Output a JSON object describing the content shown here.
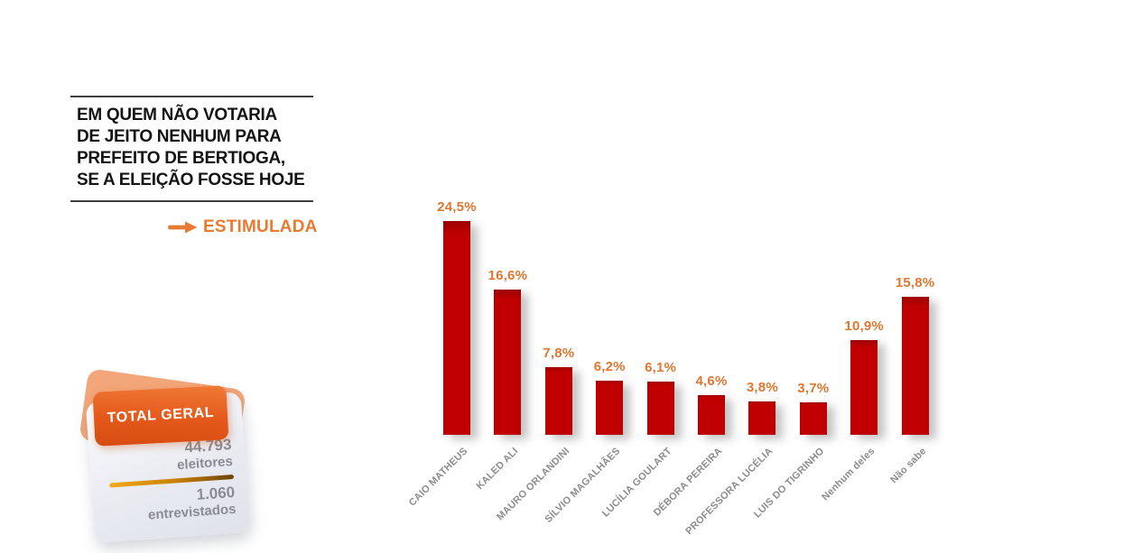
{
  "header": {
    "title_lines": [
      "EM QUEM NÃO VOTARIA",
      "DE JEITO NENHUM PARA",
      "PREFEITO DE BERTIOGA,",
      "SE A ELEIÇÃO FOSSE HOJE"
    ],
    "method_label": "ESTIMULADA"
  },
  "summary_card": {
    "badge_label": "TOTAL GERAL",
    "stats": [
      {
        "value": "44.793",
        "label": "eleitores"
      },
      {
        "value": "1.060",
        "label": "entrevistados"
      }
    ]
  },
  "chart_data": {
    "type": "bar",
    "title": "EM QUEM NÃO VOTARIA DE JEITO NENHUM PARA PREFEITO DE BERTIOGA, SE A ELEIÇÃO FOSSE HOJE — ESTIMULADA",
    "categories": [
      "CAIO MATHEUS",
      "KALED ALI",
      "MAURO ORLANDINI",
      "SÍLVIO MAGALHÃES",
      "LUCÍLIA GOULART",
      "DÉBORA PEREIRA",
      "PROFESSORA LUCÉLIA",
      "LUIS DO TIGRINHO",
      "Nenhum deles",
      "Não sabe"
    ],
    "values": [
      24.5,
      16.6,
      7.8,
      6.2,
      6.1,
      4.6,
      3.8,
      3.7,
      10.9,
      15.8
    ],
    "value_labels": [
      "24,5%",
      "16,6%",
      "7,8%",
      "6,2%",
      "6,1%",
      "4,6%",
      "3,8%",
      "3,7%",
      "10,9%",
      "15,8%"
    ],
    "xlabel": "",
    "ylabel": "",
    "ylim": [
      0,
      26
    ],
    "grid": false,
    "legend": false,
    "bar_color": "#C00000",
    "value_label_color": "#E0762F",
    "category_label_color": "#8C8C8C"
  },
  "colors": {
    "accent_orange": "#E87B33",
    "bar_red": "#C00000",
    "title_text": "#141414",
    "rule_gray": "#3F3F3F",
    "stat_gray": "#8B8B93",
    "gold_line_start": "#F2A91B",
    "gold_line_end": "#6B4400"
  }
}
